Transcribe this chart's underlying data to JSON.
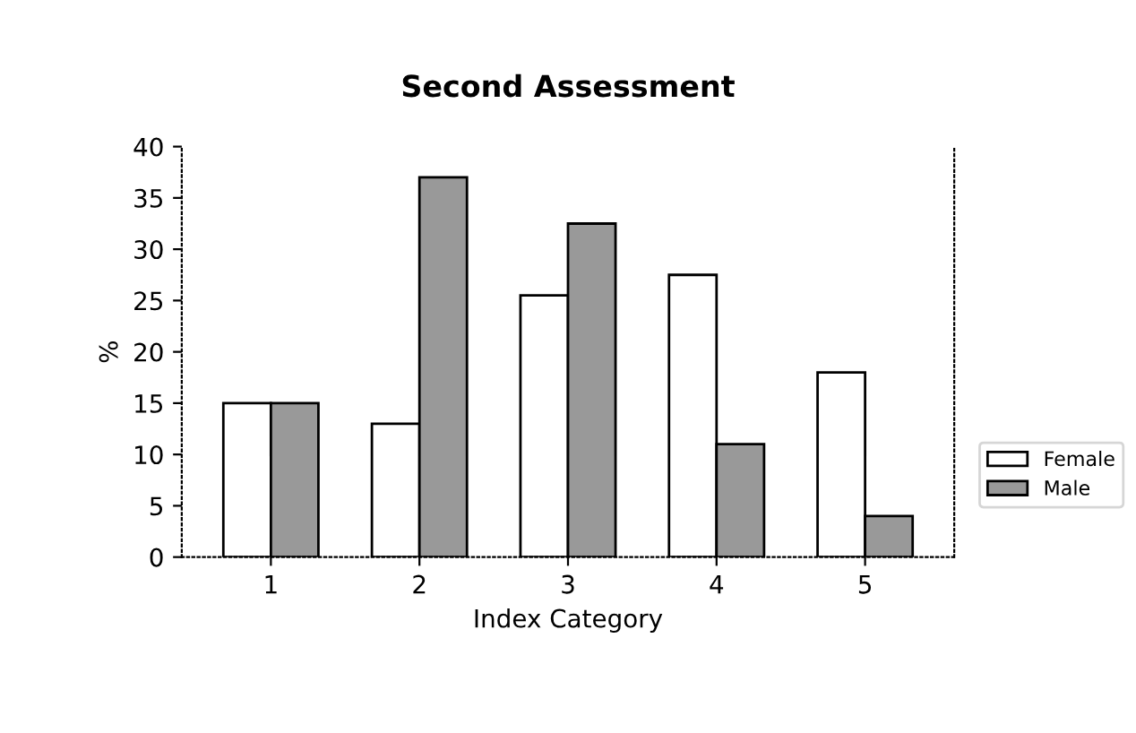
{
  "chart_data": {
    "type": "bar",
    "title": "Second Assessment",
    "xlabel": "Index Category",
    "ylabel": "%",
    "categories": [
      "1",
      "2",
      "3",
      "4",
      "5"
    ],
    "series": [
      {
        "name": "Female",
        "color": "#ffffff",
        "values": [
          15,
          13,
          25.5,
          27.5,
          18
        ]
      },
      {
        "name": "Male",
        "color": "#999999",
        "values": [
          15,
          37,
          32.5,
          11,
          4
        ]
      }
    ],
    "ylim": [
      0,
      40
    ],
    "yticks": [
      0,
      5,
      10,
      15,
      20,
      25,
      30,
      35,
      40
    ],
    "grid": false,
    "legend": "right"
  }
}
